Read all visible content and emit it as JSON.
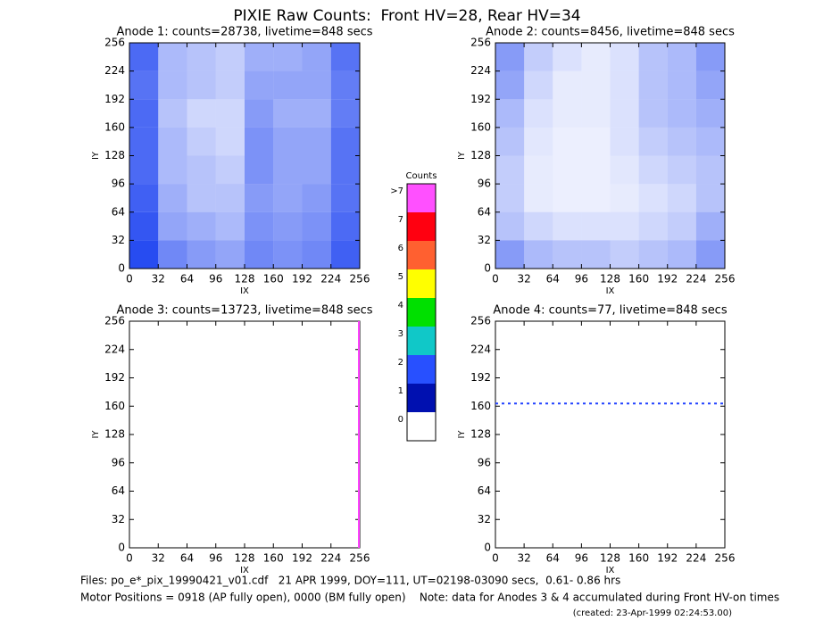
{
  "title": "PIXIE Raw Counts:  Front HV=28, Rear HV=34",
  "chart_data": [
    {
      "type": "heatmap",
      "title": "Anode 1: counts=28738, livetime=848 secs",
      "xlabel": "IX",
      "ylabel": "IY",
      "xlim": [
        0,
        256
      ],
      "ylim": [
        0,
        256
      ],
      "xticks": [
        0,
        32,
        64,
        96,
        128,
        160,
        192,
        224,
        256
      ],
      "yticks": [
        0,
        32,
        64,
        96,
        128,
        160,
        192,
        224,
        256
      ],
      "color": "#1038f0",
      "values": [
        [
          0.9,
          0.6,
          0.5,
          0.45,
          0.6,
          0.55,
          0.6,
          0.8
        ],
        [
          0.85,
          0.45,
          0.4,
          0.35,
          0.55,
          0.5,
          0.55,
          0.75
        ],
        [
          0.8,
          0.4,
          0.3,
          0.3,
          0.5,
          0.45,
          0.5,
          0.7
        ],
        [
          0.75,
          0.35,
          0.3,
          0.25,
          0.55,
          0.45,
          0.45,
          0.7
        ],
        [
          0.75,
          0.35,
          0.25,
          0.2,
          0.55,
          0.45,
          0.45,
          0.7
        ],
        [
          0.75,
          0.3,
          0.2,
          0.2,
          0.5,
          0.4,
          0.4,
          0.65
        ],
        [
          0.7,
          0.35,
          0.3,
          0.25,
          0.45,
          0.45,
          0.45,
          0.65
        ],
        [
          0.75,
          0.35,
          0.3,
          0.25,
          0.4,
          0.4,
          0.45,
          0.7
        ]
      ]
    },
    {
      "type": "heatmap",
      "title": "Anode 2: counts=8456, livetime=848 secs",
      "xlabel": "IX",
      "ylabel": "IY",
      "xlim": [
        0,
        256
      ],
      "ylim": [
        0,
        256
      ],
      "xticks": [
        0,
        32,
        64,
        96,
        128,
        160,
        192,
        224,
        256
      ],
      "yticks": [
        0,
        32,
        64,
        96,
        128,
        160,
        192,
        224,
        256
      ],
      "color": "#1038f0",
      "values": [
        [
          0.5,
          0.35,
          0.3,
          0.3,
          0.25,
          0.3,
          0.35,
          0.5
        ],
        [
          0.3,
          0.2,
          0.15,
          0.15,
          0.15,
          0.2,
          0.25,
          0.4
        ],
        [
          0.25,
          0.1,
          0.08,
          0.08,
          0.1,
          0.15,
          0.2,
          0.3
        ],
        [
          0.25,
          0.1,
          0.08,
          0.08,
          0.12,
          0.2,
          0.25,
          0.3
        ],
        [
          0.3,
          0.12,
          0.08,
          0.08,
          0.15,
          0.25,
          0.3,
          0.35
        ],
        [
          0.35,
          0.15,
          0.1,
          0.1,
          0.15,
          0.3,
          0.35,
          0.4
        ],
        [
          0.45,
          0.2,
          0.1,
          0.1,
          0.15,
          0.3,
          0.35,
          0.45
        ],
        [
          0.5,
          0.25,
          0.15,
          0.1,
          0.15,
          0.3,
          0.35,
          0.5
        ]
      ]
    },
    {
      "type": "lines",
      "title": "Anode 3: counts=13723, livetime=848 secs",
      "xlabel": "IX",
      "ylabel": "IY",
      "xlim": [
        0,
        256
      ],
      "ylim": [
        0,
        256
      ],
      "xticks": [
        0,
        32,
        64,
        96,
        128,
        160,
        192,
        224,
        256
      ],
      "yticks": [
        0,
        32,
        64,
        96,
        128,
        160,
        192,
        224,
        256
      ],
      "series": [
        {
          "x": [
            255,
            255
          ],
          "y": [
            0,
            256
          ],
          "color": "#ff40ff"
        }
      ]
    },
    {
      "type": "lines",
      "title": "Anode 4: counts=77, livetime=848 secs",
      "xlabel": "IX",
      "ylabel": "IY",
      "xlim": [
        0,
        256
      ],
      "ylim": [
        0,
        256
      ],
      "xticks": [
        0,
        32,
        64,
        96,
        128,
        160,
        192,
        224,
        256
      ],
      "yticks": [
        0,
        32,
        64,
        96,
        128,
        160,
        192,
        224,
        256
      ],
      "series": [
        {
          "x": [
            0,
            256
          ],
          "y": [
            163,
            163
          ],
          "color": "#2040ff"
        }
      ]
    },
    {
      "type": "colorbar",
      "title": "Counts",
      "categories": [
        "0",
        "1",
        "2",
        "3",
        "4",
        "5",
        "6",
        "7",
        ">7"
      ],
      "colors": [
        "#ffffff",
        "#0010b0",
        "#2850ff",
        "#10c8c8",
        "#00e000",
        "#ffff00",
        "#ff6030",
        "#ff0010",
        "#ff50ff"
      ]
    }
  ],
  "footer": [
    "Files: po_e*_pix_19990421_v01.cdf   21 APR 1999, DOY=111, UT=02198-03090 secs,  0.61- 0.86 hrs",
    "Motor Positions = 0918 (AP fully open), 0000 (BM fully open)    Note: data for Anodes 3 & 4 accumulated during Front HV-on times",
    "(created: 23-Apr-1999 02:24:53.00)"
  ]
}
